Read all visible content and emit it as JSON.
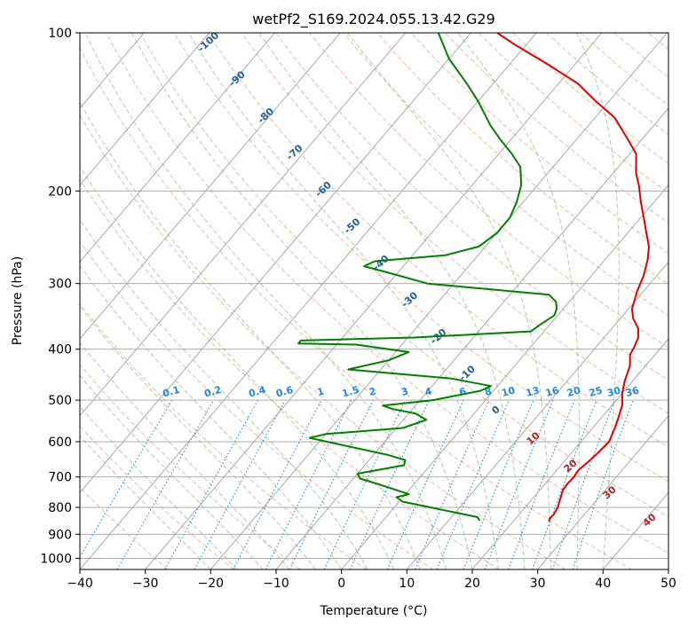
{
  "chart_data": {
    "type": "line",
    "title": "wetPf2_S169.2024.055.13.42.G29",
    "xlabel": "Temperature (°C)",
    "ylabel": "Pressure (hPa)",
    "xlim": [
      -40,
      50
    ],
    "ylim": [
      1050,
      100
    ],
    "y_scale": "log",
    "grid": true,
    "x_ticks": [
      "−40",
      "−30",
      "−20",
      "−10",
      "0",
      "10",
      "20",
      "30",
      "40",
      "50"
    ],
    "y_ticks": [
      {
        "p": 100,
        "label": "100"
      },
      {
        "p": 200,
        "label": "200"
      },
      {
        "p": 300,
        "label": "300"
      },
      {
        "p": 400,
        "label": "400"
      },
      {
        "p": 500,
        "label": "500"
      },
      {
        "p": 600,
        "label": "600"
      },
      {
        "p": 700,
        "label": "700"
      },
      {
        "p": 800,
        "label": "800"
      },
      {
        "p": 900,
        "label": "900"
      },
      {
        "p": 1000,
        "label": "1000"
      }
    ],
    "colors": {
      "temperature": "#e00000",
      "dewpoint": "#008000",
      "dry_adiabat": "#f4a582",
      "moist_adiabat": "#7fbf7b",
      "mixing_ratio": "#1e88e5",
      "isotherm": "#a0a0a0",
      "dry_label": "#b22222",
      "moist_label": "#1f5f9f"
    },
    "series": [
      {
        "name": "",
        "role": "temperature",
        "points": [
          [
            25.5,
            851
          ],
          [
            25.2,
            840
          ],
          [
            25.3,
            825
          ],
          [
            25.0,
            800
          ],
          [
            24.5,
            780
          ],
          [
            24.0,
            760
          ],
          [
            23.5,
            740
          ],
          [
            23.4,
            720
          ],
          [
            23.5,
            700
          ],
          [
            23.3,
            680
          ],
          [
            23.8,
            650
          ],
          [
            24.1,
            625
          ],
          [
            24.3,
            600
          ],
          [
            23.4,
            565
          ],
          [
            22.6,
            540
          ],
          [
            21.5,
            510
          ],
          [
            20.0,
            485
          ],
          [
            18.8,
            460
          ],
          [
            17.6,
            430
          ],
          [
            16.2,
            410
          ],
          [
            15.8,
            395
          ],
          [
            15.2,
            380
          ],
          [
            14.0,
            365
          ],
          [
            12.0,
            350
          ],
          [
            10.5,
            335
          ],
          [
            9.0,
            310
          ],
          [
            8.0,
            290
          ],
          [
            6.5,
            270
          ],
          [
            5.0,
            255
          ],
          [
            2.8,
            240
          ],
          [
            0.5,
            225
          ],
          [
            -2.0,
            210
          ],
          [
            -4.5,
            195
          ],
          [
            -6.5,
            185
          ],
          [
            -9.0,
            170
          ],
          [
            -12.0,
            160
          ],
          [
            -17.0,
            145
          ],
          [
            -22.0,
            135
          ],
          [
            -27.0,
            125
          ],
          [
            -34.0,
            115
          ],
          [
            -42.0,
            105
          ],
          [
            -46.0,
            100
          ]
        ]
      },
      {
        "name": "",
        "role": "dewpoint",
        "points": [
          [
            14.8,
            848
          ],
          [
            14.0,
            835
          ],
          [
            5.5,
            800
          ],
          [
            0.5,
            780
          ],
          [
            -1.0,
            765
          ],
          [
            0.5,
            755
          ],
          [
            -5.0,
            725
          ],
          [
            -9.0,
            705
          ],
          [
            -10.0,
            690
          ],
          [
            -4.0,
            665
          ],
          [
            -4.5,
            650
          ],
          [
            -8.0,
            635
          ],
          [
            -22.0,
            590
          ],
          [
            -20.0,
            580
          ],
          [
            -9.0,
            565
          ],
          [
            -6.5,
            545
          ],
          [
            -9.0,
            530
          ],
          [
            -13.0,
            520
          ],
          [
            -15.0,
            512
          ],
          [
            -8.0,
            500
          ],
          [
            -2.0,
            480
          ],
          [
            -1.0,
            470
          ],
          [
            -8.0,
            455
          ],
          [
            -25.0,
            437
          ],
          [
            -20.0,
            420
          ],
          [
            -18.0,
            405
          ],
          [
            -27.0,
            392
          ],
          [
            -36.0,
            390
          ],
          [
            -36.0,
            385
          ],
          [
            -19.0,
            380
          ],
          [
            -2.0,
            370
          ],
          [
            -1.5,
            360
          ],
          [
            -0.5,
            345
          ],
          [
            -1.0,
            335
          ],
          [
            -2.0,
            325
          ],
          [
            -4.0,
            315
          ],
          [
            -24.0,
            300
          ],
          [
            -32.0,
            285
          ],
          [
            -36.0,
            278
          ],
          [
            -35.0,
            272
          ],
          [
            -25.0,
            265
          ],
          [
            -21.0,
            255
          ],
          [
            -20.0,
            240
          ],
          [
            -20.0,
            225
          ],
          [
            -21.0,
            210
          ],
          [
            -22.5,
            195
          ],
          [
            -25.0,
            180
          ],
          [
            -28.0,
            170
          ],
          [
            -31.5,
            160
          ],
          [
            -35.0,
            150
          ],
          [
            -40.0,
            135
          ],
          [
            -44.0,
            125
          ],
          [
            -50.0,
            112
          ],
          [
            -55.0,
            100
          ]
        ]
      }
    ],
    "mixing_ratio_labels": [
      "0.1",
      "0.2",
      "0.4",
      "0.6",
      "1",
      "1.5",
      "2",
      "3",
      "4",
      "6",
      "8",
      "10",
      "13",
      "16",
      "20",
      "25",
      "30",
      "36"
    ],
    "moist_adiabat_labels": [
      "-100",
      "-90",
      "-80",
      "-70",
      "-60",
      "-50",
      "-40",
      "-30",
      "-20",
      "-10",
      "0"
    ],
    "dry_adiabat_labels": [
      "10",
      "20",
      "30",
      "40"
    ]
  }
}
